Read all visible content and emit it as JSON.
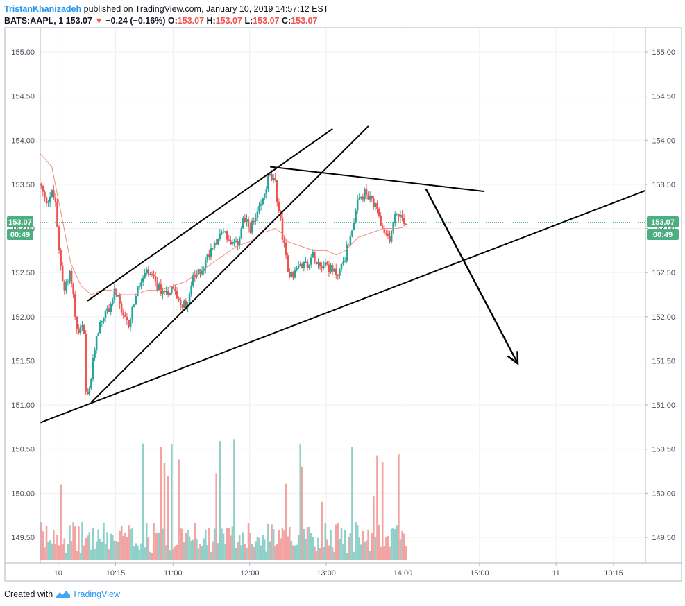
{
  "header": {
    "author": "TristanKhanizadeh",
    "published_text": "published on TradingView.com, January 10, 2019 14:57:12 EST"
  },
  "ohlc": {
    "symbol": "BATS:AAPL, 1",
    "last": "153.07",
    "change": "−0.24 (−0.16%)",
    "o_label": "O:",
    "o": "153.07",
    "h_label": "H:",
    "h": "153.07",
    "l_label": "L:",
    "l": "153.07",
    "c_label": "C:",
    "c": "153.07"
  },
  "price_badge": {
    "price": "153.07",
    "countdown": "00:49"
  },
  "footer": {
    "created_with": "Created with",
    "brand": "TradingView"
  },
  "colors": {
    "up": "#26a69a",
    "down": "#ef5350",
    "vol_up": "#8fd0c9",
    "vol_down": "#f3a3a1",
    "ma": "#f28b82",
    "badge": "#4caf81",
    "accent": "#2196f3"
  },
  "chart_data": {
    "type": "candlestick",
    "y_ticks": [
      "155.00",
      "154.50",
      "154.00",
      "153.50",
      "153.00",
      "152.50",
      "152.00",
      "151.50",
      "151.00",
      "150.50",
      "150.00",
      "149.50"
    ],
    "ylim": [
      149.22,
      155.3
    ],
    "x_ticks": [
      "10",
      "10:15",
      "11:00",
      "12:00",
      "13:00",
      "14:00",
      "15:00",
      "11",
      "10:15"
    ],
    "x_tick_times": [
      30,
      75,
      120,
      180,
      240,
      300,
      360,
      420,
      465
    ],
    "xlim": [
      16,
      490
    ],
    "price_path": [
      [
        16,
        153.5
      ],
      [
        20,
        153.3
      ],
      [
        25,
        153.4
      ],
      [
        28,
        153.3
      ],
      [
        30,
        152.8
      ],
      [
        35,
        152.3
      ],
      [
        40,
        152.5
      ],
      [
        45,
        151.8
      ],
      [
        50,
        151.9
      ],
      [
        52,
        151.0
      ],
      [
        55,
        151.2
      ],
      [
        60,
        151.8
      ],
      [
        65,
        152.0
      ],
      [
        70,
        152.1
      ],
      [
        75,
        152.3
      ],
      [
        80,
        152.0
      ],
      [
        85,
        151.9
      ],
      [
        90,
        152.2
      ],
      [
        95,
        152.4
      ],
      [
        100,
        152.5
      ],
      [
        105,
        152.4
      ],
      [
        110,
        152.3
      ],
      [
        115,
        152.3
      ],
      [
        120,
        152.3
      ],
      [
        125,
        152.2
      ],
      [
        130,
        152.1
      ],
      [
        135,
        152.4
      ],
      [
        140,
        152.5
      ],
      [
        145,
        152.6
      ],
      [
        150,
        152.8
      ],
      [
        155,
        152.9
      ],
      [
        160,
        153.0
      ],
      [
        165,
        152.8
      ],
      [
        170,
        152.8
      ],
      [
        175,
        153.1
      ],
      [
        180,
        153.0
      ],
      [
        185,
        153.1
      ],
      [
        190,
        153.3
      ],
      [
        195,
        153.6
      ],
      [
        200,
        153.5
      ],
      [
        205,
        153.0
      ],
      [
        210,
        152.5
      ],
      [
        215,
        152.5
      ],
      [
        220,
        152.6
      ],
      [
        225,
        152.6
      ],
      [
        230,
        152.7
      ],
      [
        235,
        152.6
      ],
      [
        240,
        152.6
      ],
      [
        245,
        152.5
      ],
      [
        250,
        152.5
      ],
      [
        255,
        152.7
      ],
      [
        260,
        153.0
      ],
      [
        265,
        153.3
      ],
      [
        270,
        153.4
      ],
      [
        275,
        153.3
      ],
      [
        280,
        153.2
      ],
      [
        285,
        152.9
      ],
      [
        290,
        152.9
      ],
      [
        295,
        153.2
      ],
      [
        300,
        153.1
      ],
      [
        303,
        153.07
      ]
    ],
    "ma_path": [
      [
        16,
        153.85
      ],
      [
        25,
        153.7
      ],
      [
        32,
        153.2
      ],
      [
        40,
        152.6
      ],
      [
        48,
        152.35
      ],
      [
        56,
        152.25
      ],
      [
        64,
        152.3
      ],
      [
        72,
        152.3
      ],
      [
        80,
        152.25
      ],
      [
        90,
        152.25
      ],
      [
        100,
        152.3
      ],
      [
        110,
        152.3
      ],
      [
        120,
        152.35
      ],
      [
        130,
        152.4
      ],
      [
        140,
        152.5
      ],
      [
        150,
        152.6
      ],
      [
        160,
        152.7
      ],
      [
        170,
        152.8
      ],
      [
        180,
        152.85
      ],
      [
        190,
        152.95
      ],
      [
        200,
        153.0
      ],
      [
        205,
        152.95
      ],
      [
        210,
        152.85
      ],
      [
        220,
        152.8
      ],
      [
        230,
        152.75
      ],
      [
        240,
        152.75
      ],
      [
        248,
        152.7
      ],
      [
        255,
        152.75
      ],
      [
        265,
        152.9
      ],
      [
        275,
        152.95
      ],
      [
        285,
        153.0
      ],
      [
        295,
        153.0
      ],
      [
        303,
        153.02
      ]
    ],
    "last_price": 153.07,
    "drawings": [
      {
        "from": [
          53,
          152.18
        ],
        "to": [
          245,
          154.13
        ]
      },
      {
        "from": [
          56,
          151.03
        ],
        "to": [
          273,
          154.16
        ]
      },
      {
        "from": [
          16,
          150.8
        ],
        "to": [
          490,
          153.43
        ]
      },
      {
        "from": [
          196,
          153.7
        ],
        "to": [
          364,
          153.42
        ]
      }
    ],
    "arrow": {
      "from": [
        318,
        153.45
      ],
      "to": [
        390,
        151.47
      ]
    },
    "grid": true
  }
}
